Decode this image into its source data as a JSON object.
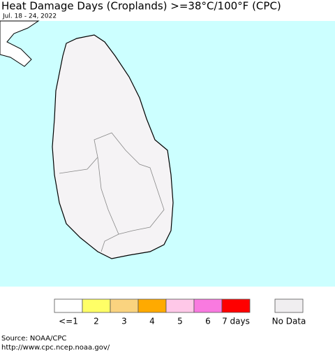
{
  "header": {
    "title": "Heat Damage Days (Croplands) >=38°C/100°F (CPC)",
    "subtitle": "Jul. 18 - 24, 2022"
  },
  "legend": {
    "items": [
      {
        "label": "<=1",
        "color": "#ffffff"
      },
      {
        "label": "2",
        "color": "#ffff66"
      },
      {
        "label": "3",
        "color": "#fad37f"
      },
      {
        "label": "4",
        "color": "#ffaa00"
      },
      {
        "label": "5",
        "color": "#ffc8e8"
      },
      {
        "label": "6",
        "color": "#f97ae0"
      },
      {
        "label": "7 days",
        "color": "#ff0000"
      }
    ],
    "no_data": {
      "label": "No Data",
      "color": "#f0eef0"
    }
  },
  "footer": {
    "source": "Source: NOAA/CPC",
    "url": "http://www.cpc.ncep.noaa.gov/"
  }
}
